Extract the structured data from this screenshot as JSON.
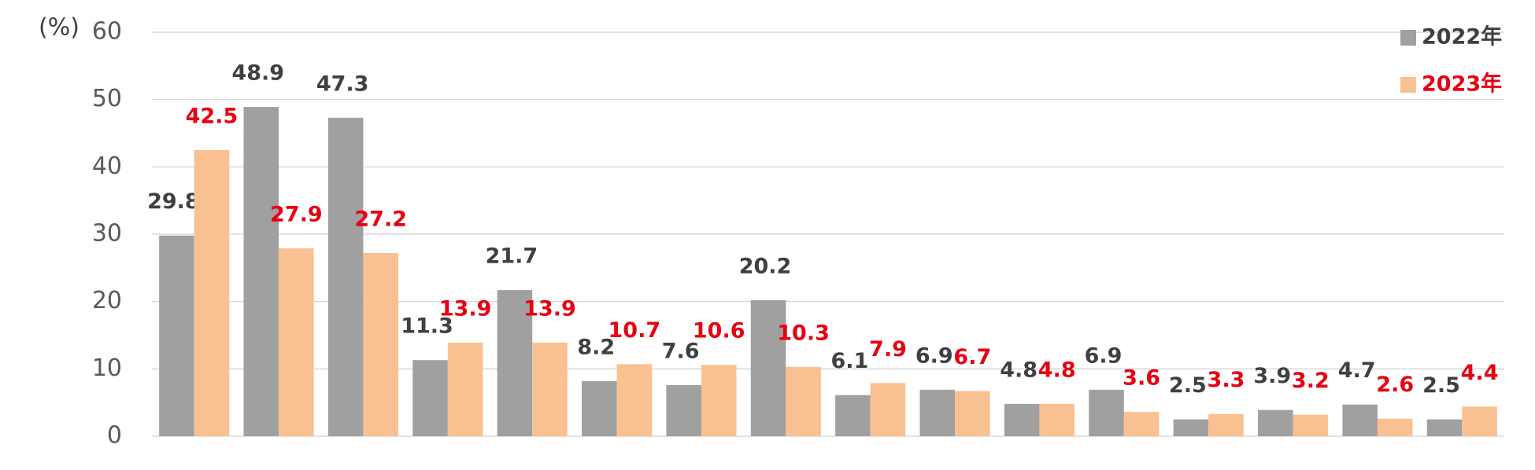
{
  "chart_data": {
    "type": "bar",
    "y_label": "(%)",
    "categories": [
      null,
      null,
      null,
      null,
      null,
      null,
      null,
      null,
      null,
      null,
      null,
      null,
      null,
      null,
      null,
      null
    ],
    "series": [
      {
        "name": "2022年",
        "color": "#a0a0a0",
        "label_color": "#404040",
        "values": [
          29.8,
          48.9,
          47.3,
          11.3,
          21.7,
          8.2,
          7.6,
          20.2,
          6.1,
          6.9,
          4.8,
          6.9,
          2.5,
          3.9,
          4.7,
          2.5
        ]
      },
      {
        "name": "2023年",
        "color": "#f9c191",
        "label_color": "#e60012",
        "values": [
          42.5,
          27.9,
          27.2,
          13.9,
          13.9,
          10.7,
          10.6,
          10.3,
          7.9,
          6.7,
          4.8,
          3.6,
          3.3,
          3.2,
          2.6,
          4.4
        ]
      }
    ],
    "ylim": [
      0,
      60
    ],
    "yticks": [
      0,
      10,
      20,
      30,
      40,
      50,
      60
    ],
    "grid": true,
    "legend": "top-right"
  }
}
